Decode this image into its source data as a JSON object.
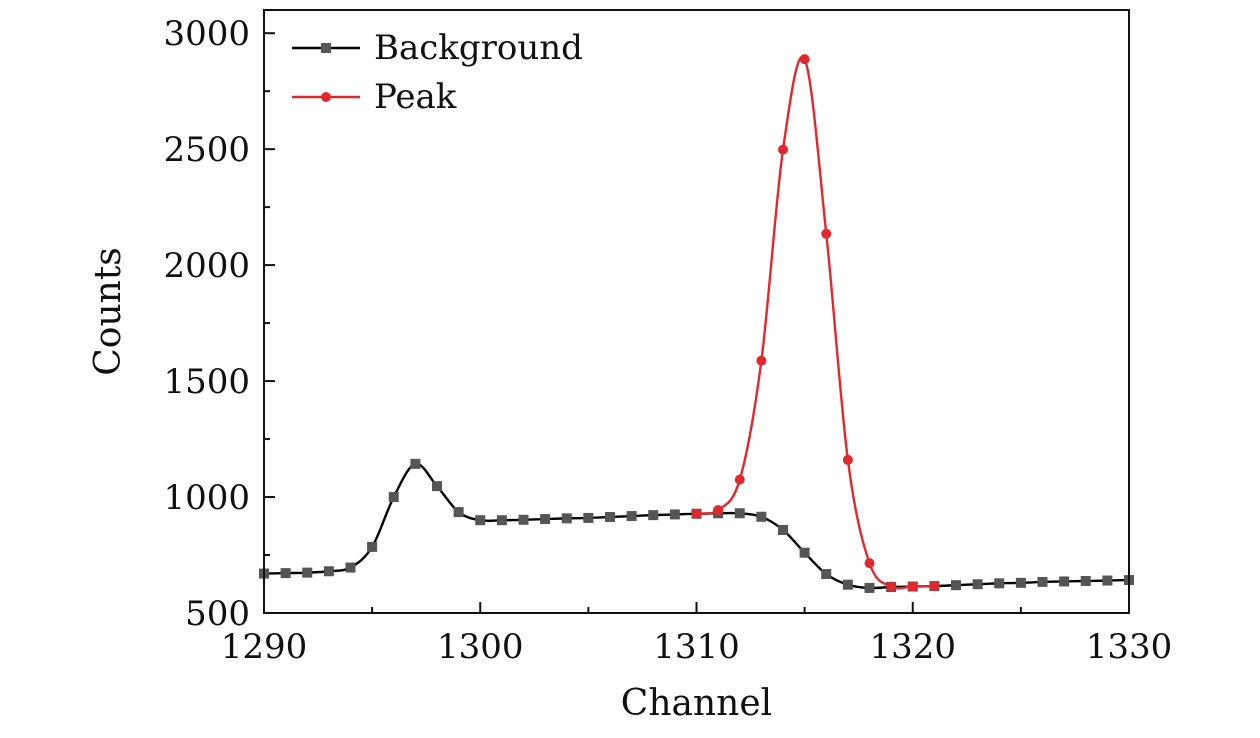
{
  "chart_data": {
    "type": "line",
    "title": "",
    "xlabel": "Channel",
    "ylabel": "Counts",
    "xlim": [
      1290,
      1330
    ],
    "ylim": [
      500,
      3100
    ],
    "xticks": [
      1290,
      1300,
      1310,
      1320,
      1330
    ],
    "yticks": [
      500,
      1000,
      1500,
      2000,
      2500,
      3000
    ],
    "grid": false,
    "legend_position": "top-left",
    "series": [
      {
        "name": "Background",
        "color": "#000000",
        "marker": "square",
        "marker_color": "#555555",
        "x": [
          1290,
          1291,
          1292,
          1293,
          1294,
          1295,
          1296,
          1297,
          1298,
          1299,
          1300,
          1301,
          1302,
          1303,
          1304,
          1305,
          1306,
          1307,
          1308,
          1309,
          1310,
          1311,
          1312,
          1313,
          1314,
          1315,
          1316,
          1317,
          1318,
          1319,
          1320,
          1321,
          1322,
          1323,
          1324,
          1325,
          1326,
          1327,
          1328,
          1329,
          1330
        ],
        "y": [
          670,
          672,
          674,
          680,
          696,
          785,
          1000,
          1143,
          1047,
          935,
          900,
          900,
          902,
          905,
          908,
          910,
          914,
          918,
          922,
          925,
          928,
          930,
          930,
          915,
          858,
          760,
          668,
          622,
          608,
          612,
          614,
          616,
          620,
          624,
          628,
          630,
          634,
          636,
          638,
          640,
          642
        ]
      },
      {
        "name": "Peak",
        "color": "#e0282e",
        "marker": "circle",
        "marker_color": "#e0282e",
        "x": [
          1310,
          1311,
          1312,
          1313,
          1314,
          1315,
          1316,
          1317,
          1318,
          1319,
          1320,
          1321
        ],
        "y": [
          928,
          944,
          1075,
          1588,
          2498,
          2888,
          2135,
          1160,
          715,
          614,
          614,
          616
        ]
      }
    ]
  }
}
